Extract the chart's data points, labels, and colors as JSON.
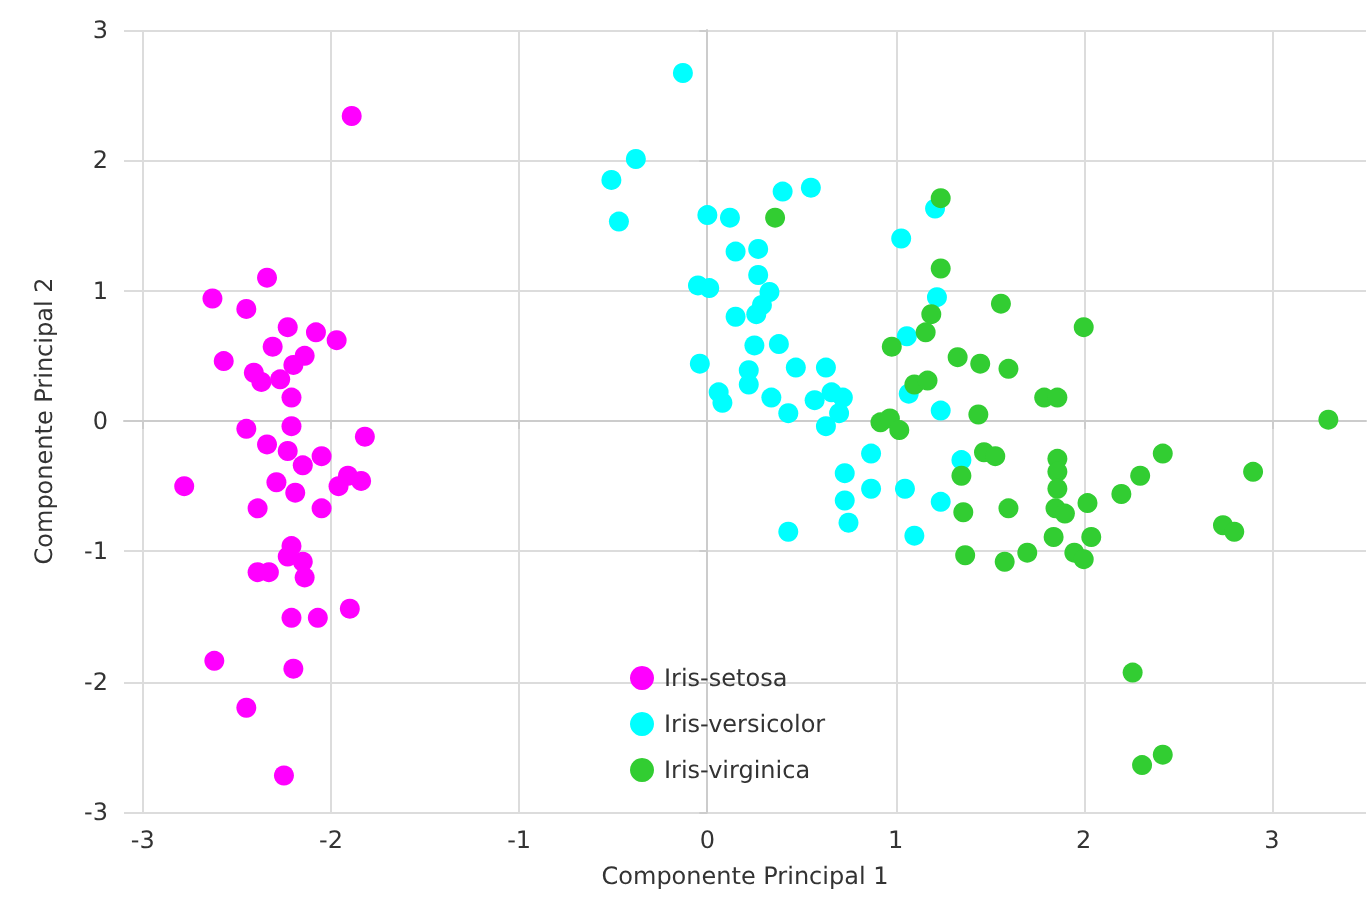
{
  "chart_data": {
    "type": "scatter",
    "xlabel": "Componente Principal 1",
    "ylabel": "Componente Principal 2",
    "xlim": [
      -3.1,
      3.5
    ],
    "ylim": [
      -3,
      3
    ],
    "xticks": [
      -3,
      -2,
      -1,
      0,
      1,
      2,
      3
    ],
    "yticks": [
      -3,
      -2,
      -1,
      0,
      1,
      2,
      3
    ],
    "grid": true,
    "legend": "bottom",
    "marker": "circle",
    "series": [
      {
        "name": "Iris-setosa",
        "color": "#ff00ff",
        "x": [
          -1.89,
          -2.34,
          -2.63,
          -2.45,
          -2.23,
          -2.08,
          -1.97,
          -2.31,
          -2.57,
          -2.14,
          -2.2,
          -2.41,
          -2.37,
          -2.27,
          -2.21,
          -2.45,
          -2.21,
          -1.82,
          -2.34,
          -2.23,
          -2.15,
          -2.05,
          -2.78,
          -2.29,
          -2.19,
          -1.96,
          -1.91,
          -1.84,
          -2.39,
          -2.05,
          -2.21,
          -2.23,
          -2.15,
          -2.39,
          -2.33,
          -2.14,
          -1.9,
          -2.21,
          -2.07,
          -2.62,
          -2.2,
          -2.45,
          -2.25
        ],
        "values": [
          2.34,
          1.1,
          0.94,
          0.86,
          0.72,
          0.68,
          0.62,
          0.57,
          0.46,
          0.5,
          0.43,
          0.37,
          0.3,
          0.32,
          0.18,
          -0.06,
          -0.04,
          -0.12,
          -0.18,
          -0.23,
          -0.34,
          -0.27,
          -0.5,
          -0.47,
          -0.55,
          -0.5,
          -0.42,
          -0.46,
          -0.67,
          -0.67,
          -0.96,
          -1.04,
          -1.08,
          -1.16,
          -1.16,
          -1.2,
          -1.44,
          -1.51,
          -1.51,
          -1.84,
          -1.9,
          -2.2,
          -2.72
        ]
      },
      {
        "name": "Iris-versicolor",
        "color": "#00ffff",
        "x": [
          -0.13,
          -0.38,
          -0.51,
          -0.47,
          0.4,
          0.55,
          0.0,
          0.12,
          1.03,
          0.15,
          0.27,
          0.27,
          0.33,
          -0.05,
          0.01,
          0.15,
          0.26,
          0.29,
          0.25,
          0.38,
          1.22,
          1.06,
          -0.04,
          0.22,
          0.22,
          0.47,
          0.63,
          0.06,
          0.08,
          0.34,
          0.43,
          0.57,
          0.66,
          0.72,
          0.7,
          0.63,
          1.07,
          1.24,
          0.87,
          0.73,
          0.87,
          0.73,
          1.05,
          1.24,
          0.75,
          0.43,
          1.1,
          1.35,
          1.21
        ],
        "values": [
          2.67,
          2.01,
          1.85,
          1.53,
          1.76,
          1.79,
          1.58,
          1.56,
          1.4,
          1.3,
          1.32,
          1.12,
          0.99,
          1.04,
          1.02,
          0.8,
          0.82,
          0.89,
          0.58,
          0.59,
          0.95,
          0.65,
          0.44,
          0.39,
          0.28,
          0.41,
          0.41,
          0.22,
          0.14,
          0.18,
          0.06,
          0.16,
          0.22,
          0.18,
          0.06,
          -0.04,
          0.21,
          0.08,
          -0.25,
          -0.4,
          -0.52,
          -0.61,
          -0.52,
          -0.62,
          -0.78,
          -0.85,
          -0.88,
          -0.3,
          1.63
        ]
      },
      {
        "name": "Iris-virginica",
        "color": "#32cd32",
        "x": [
          0.36,
          1.24,
          1.24,
          1.56,
          2.0,
          1.19,
          1.16,
          0.98,
          1.33,
          1.45,
          1.6,
          1.1,
          1.17,
          1.79,
          1.86,
          1.44,
          3.3,
          0.92,
          0.97,
          1.02,
          1.47,
          1.53,
          1.86,
          2.42,
          1.35,
          1.86,
          2.3,
          2.9,
          2.2,
          1.86,
          1.85,
          1.9,
          2.02,
          1.36,
          1.6,
          2.74,
          2.8,
          1.84,
          2.04,
          1.95,
          2.0,
          1.37,
          1.58,
          1.7,
          2.26,
          2.31,
          2.42
        ],
        "values": [
          1.56,
          1.71,
          1.17,
          0.9,
          0.72,
          0.82,
          0.68,
          0.57,
          0.49,
          0.44,
          0.4,
          0.28,
          0.31,
          0.18,
          0.18,
          0.05,
          0.01,
          -0.01,
          0.02,
          -0.07,
          -0.24,
          -0.27,
          -0.29,
          -0.25,
          -0.42,
          -0.39,
          -0.42,
          -0.39,
          -0.56,
          -0.52,
          -0.67,
          -0.71,
          -0.63,
          -0.7,
          -0.67,
          -0.8,
          -0.85,
          -0.89,
          -0.89,
          -1.01,
          -1.06,
          -1.03,
          -1.08,
          -1.01,
          -1.93,
          -2.64,
          -2.56
        ]
      }
    ]
  }
}
